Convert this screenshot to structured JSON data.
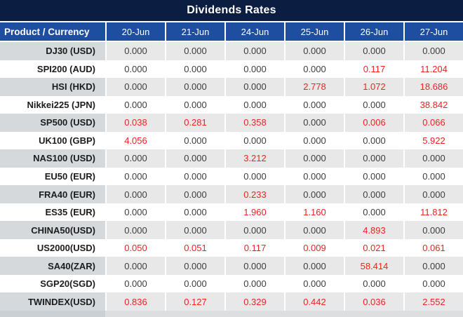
{
  "title": "Dividends Rates",
  "colors": {
    "title_bg": "#0c1d42",
    "header_bg": "#1e4ea0",
    "header_text": "#ffffff",
    "stripe_label_bg": "#d6d9dc",
    "stripe_value_bg": "#e8e8e8",
    "white_row_bg": "#ffffff",
    "label_text": "#1c1c1c",
    "zero_text": "#3d3d3d",
    "nonzero_text": "#ee2222",
    "strip_left_bg": "#cbd0d5",
    "strip_right_bg": "#dcdee0"
  },
  "chart_data": {
    "type": "table",
    "title": "Dividends Rates",
    "corner_label": "Product / Currency",
    "columns": [
      "20-Jun",
      "21-Jun",
      "24-Jun",
      "25-Jun",
      "26-Jun",
      "27-Jun"
    ],
    "rows": [
      {
        "label": "DJ30 (USD)",
        "values": [
          "0.000",
          "0.000",
          "0.000",
          "0.000",
          "0.000",
          "0.000"
        ]
      },
      {
        "label": "SPI200 (AUD)",
        "values": [
          "0.000",
          "0.000",
          "0.000",
          "0.000",
          "0.117",
          "11.204"
        ]
      },
      {
        "label": "HSI (HKD)",
        "values": [
          "0.000",
          "0.000",
          "0.000",
          "2.778",
          "1.072",
          "18.686"
        ]
      },
      {
        "label": "Nikkei225 (JPN)",
        "values": [
          "0.000",
          "0.000",
          "0.000",
          "0.000",
          "0.000",
          "38.842"
        ]
      },
      {
        "label": "SP500 (USD)",
        "values": [
          "0.038",
          "0.281",
          "0.358",
          "0.000",
          "0.006",
          "0.066"
        ]
      },
      {
        "label": "UK100 (GBP)",
        "values": [
          "4.056",
          "0.000",
          "0.000",
          "0.000",
          "0.000",
          "5.922"
        ]
      },
      {
        "label": "NAS100 (USD)",
        "values": [
          "0.000",
          "0.000",
          "3.212",
          "0.000",
          "0.000",
          "0.000"
        ]
      },
      {
        "label": "EU50 (EUR)",
        "values": [
          "0.000",
          "0.000",
          "0.000",
          "0.000",
          "0.000",
          "0.000"
        ]
      },
      {
        "label": "FRA40 (EUR)",
        "values": [
          "0.000",
          "0.000",
          "0.233",
          "0.000",
          "0.000",
          "0.000"
        ]
      },
      {
        "label": "ES35 (EUR)",
        "values": [
          "0.000",
          "0.000",
          "1.960",
          "1.160",
          "0.000",
          "11.812"
        ]
      },
      {
        "label": "CHINA50(USD)",
        "values": [
          "0.000",
          "0.000",
          "0.000",
          "0.000",
          "4.893",
          "0.000"
        ]
      },
      {
        "label": "US2000(USD)",
        "values": [
          "0.050",
          "0.051",
          "0.117",
          "0.009",
          "0.021",
          "0.061"
        ]
      },
      {
        "label": "SA40(ZAR)",
        "values": [
          "0.000",
          "0.000",
          "0.000",
          "0.000",
          "58.414",
          "0.000"
        ]
      },
      {
        "label": "SGP20(SGD)",
        "values": [
          "0.000",
          "0.000",
          "0.000",
          "0.000",
          "0.000",
          "0.000"
        ]
      },
      {
        "label": "TWINDEX(USD)",
        "values": [
          "0.836",
          "0.127",
          "0.329",
          "0.442",
          "0.036",
          "2.552"
        ]
      }
    ],
    "value_color_rule": "non-zero values rendered red, zero values rendered dark gray",
    "layout": "striped rows (odd rows gray), label column right-aligned, value columns centered"
  }
}
